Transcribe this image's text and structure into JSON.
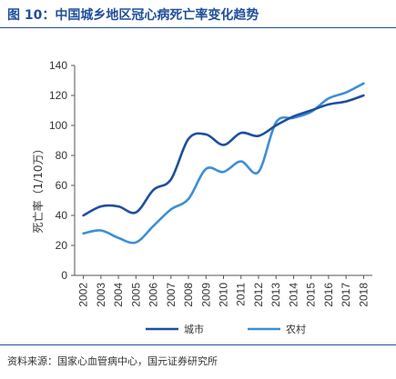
{
  "header": {
    "title": "图 10：中国城乡地区冠心病死亡率变化趋势"
  },
  "footer": {
    "source": "资料来源：国家心血管病中心，国元证券研究所"
  },
  "colors": {
    "accent": "#1f4e9c",
    "series_city": "#1f4e9c",
    "series_rural": "#3d8ed6"
  },
  "chart_data": {
    "type": "line",
    "title": "图 10：中国城乡地区冠心病死亡率变化趋势",
    "xlabel": "",
    "ylabel": "死亡率（1/10万）",
    "ylim": [
      0,
      140
    ],
    "yticks": [
      0,
      20,
      40,
      60,
      80,
      100,
      120,
      140
    ],
    "grid": false,
    "legend_position": "bottom",
    "categories": [
      "2002",
      "2003",
      "2004",
      "2005",
      "2006",
      "2007",
      "2008",
      "2009",
      "2010",
      "2011",
      "2012",
      "2013",
      "2014",
      "2015",
      "2016",
      "2017",
      "2018"
    ],
    "series": [
      {
        "name": "城市",
        "color": "#1f4e9c",
        "values": [
          40,
          46,
          46,
          42,
          57,
          64,
          91,
          94,
          87,
          95,
          93,
          100,
          106,
          110,
          114,
          116,
          120
        ]
      },
      {
        "name": "农村",
        "color": "#3d8ed6",
        "values": [
          28,
          30,
          25,
          22,
          33,
          44,
          51,
          71,
          69,
          76,
          69,
          102,
          105,
          109,
          118,
          122,
          128
        ]
      }
    ]
  }
}
